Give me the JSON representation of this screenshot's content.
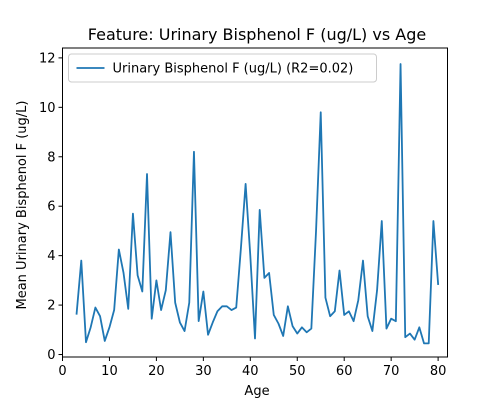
{
  "chart_data": {
    "type": "line",
    "title": "Feature: Urinary Bisphenol F (ug/L) vs Age",
    "xlabel": "Age",
    "ylabel": "Mean Urinary Bisphenol F (ug/L)",
    "xlim": [
      0,
      82
    ],
    "ylim": [
      -0.1,
      12.4
    ],
    "xticks": [
      0,
      10,
      20,
      30,
      40,
      50,
      60,
      70,
      80
    ],
    "yticks": [
      0,
      2,
      4,
      6,
      8,
      10,
      12
    ],
    "grid": false,
    "legend_position": "upper-left",
    "series": [
      {
        "name": "Urinary Bisphenol F (ug/L) (R2=0.02)",
        "color": "#1f77b4",
        "x": [
          3,
          4,
          5,
          6,
          7,
          8,
          9,
          10,
          11,
          12,
          13,
          14,
          15,
          16,
          17,
          18,
          19,
          20,
          21,
          22,
          23,
          24,
          25,
          26,
          27,
          28,
          29,
          30,
          31,
          32,
          33,
          34,
          35,
          36,
          37,
          38,
          39,
          40,
          41,
          42,
          43,
          44,
          45,
          46,
          47,
          48,
          49,
          50,
          51,
          52,
          53,
          54,
          55,
          56,
          57,
          58,
          59,
          60,
          61,
          62,
          63,
          64,
          65,
          66,
          67,
          68,
          69,
          70,
          71,
          72,
          73,
          74,
          75,
          76,
          77,
          78,
          79,
          80
        ],
        "y": [
          1.65,
          3.8,
          0.5,
          1.1,
          1.9,
          1.55,
          0.55,
          1.1,
          1.8,
          4.25,
          3.3,
          1.85,
          5.7,
          3.2,
          2.55,
          7.3,
          1.45,
          3.0,
          1.8,
          2.6,
          4.95,
          2.1,
          1.3,
          0.95,
          2.1,
          8.2,
          1.35,
          2.55,
          0.8,
          1.3,
          1.75,
          1.95,
          1.95,
          1.8,
          1.9,
          4.3,
          6.9,
          4.0,
          0.65,
          5.85,
          3.1,
          3.3,
          1.6,
          1.25,
          0.75,
          1.95,
          1.15,
          0.85,
          1.1,
          0.9,
          1.05,
          5.0,
          9.8,
          2.3,
          1.55,
          1.75,
          3.4,
          1.6,
          1.75,
          1.35,
          2.2,
          3.8,
          1.55,
          0.95,
          2.6,
          5.4,
          1.05,
          1.45,
          1.35,
          11.75,
          0.7,
          0.85,
          0.6,
          1.1,
          0.45,
          0.45,
          5.4,
          2.85
        ]
      }
    ]
  }
}
